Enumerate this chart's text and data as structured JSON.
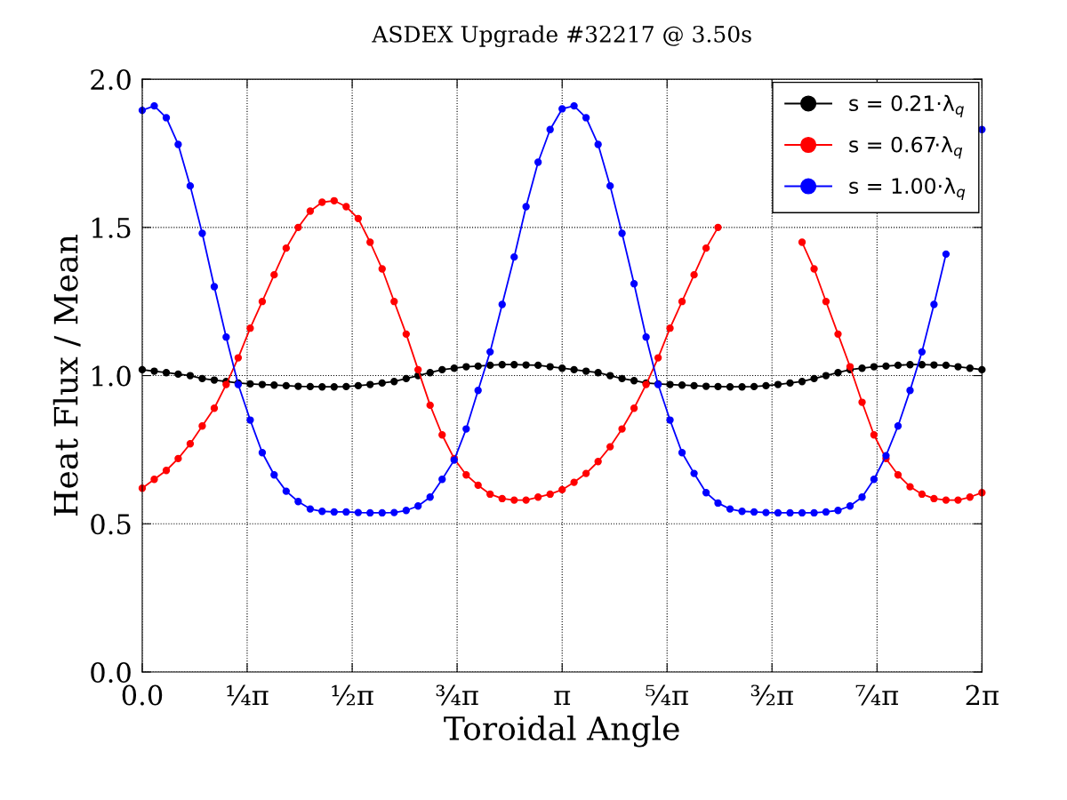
{
  "chart_data": {
    "type": "line",
    "title": "ASDEX Upgrade #32217 @ 3.50s",
    "xlabel": "Toroidal Angle",
    "ylabel": "Heat Flux / Mean",
    "x": [
      0,
      0.09,
      0.18,
      0.269,
      0.359,
      0.449,
      0.539,
      0.628,
      0.718,
      0.808,
      0.898,
      0.987,
      1.077,
      1.167,
      1.257,
      1.346,
      1.436,
      1.526,
      1.616,
      1.705,
      1.795,
      1.885,
      1.975,
      2.064,
      2.154,
      2.244,
      2.334,
      2.424,
      2.513,
      2.603,
      2.693,
      2.783,
      2.872,
      2.962,
      3.052,
      3.142,
      3.231,
      3.321,
      3.411,
      3.501,
      3.59,
      3.68,
      3.77,
      3.86,
      3.949,
      4.039,
      4.129,
      4.219,
      4.308,
      4.398,
      4.488,
      4.578,
      4.667,
      4.757,
      4.847,
      4.937,
      5.027,
      5.116,
      5.206,
      5.296,
      5.386,
      5.475,
      5.565,
      5.655,
      5.745,
      5.834,
      5.924,
      6.014,
      6.104,
      6.193,
      6.283
    ],
    "series": [
      {
        "name": "s = 0.21·λ$_{q}$",
        "color": "#000000",
        "values": [
          1.02,
          1.015,
          1.01,
          1.005,
          1.0,
          0.99,
          0.985,
          0.98,
          0.975,
          0.972,
          0.97,
          0.968,
          0.966,
          0.964,
          0.963,
          0.962,
          0.962,
          0.963,
          0.966,
          0.97,
          0.975,
          0.98,
          0.99,
          1.0,
          1.01,
          1.02,
          1.025,
          1.03,
          1.032,
          1.035,
          1.037,
          1.037,
          1.036,
          1.035,
          1.03,
          1.025,
          1.02,
          1.015,
          1.01,
          1.0,
          0.99,
          0.983,
          0.975,
          0.972,
          0.97,
          0.968,
          0.966,
          0.964,
          0.963,
          0.962,
          0.962,
          0.963,
          0.966,
          0.97,
          0.975,
          0.98,
          0.99,
          1.0,
          1.01,
          1.02,
          1.025,
          1.03,
          1.032,
          1.035,
          1.037,
          1.037,
          1.036,
          1.035,
          1.03,
          1.025,
          1.02
        ]
      },
      {
        "name": "s = 0.67·λ$_{q}$",
        "color": "#ff0000",
        "values": [
          0.62,
          0.65,
          0.68,
          0.72,
          0.77,
          0.83,
          0.89,
          0.97,
          1.06,
          1.16,
          1.25,
          1.34,
          1.43,
          1.5,
          1.555,
          1.585,
          1.59,
          1.57,
          1.53,
          1.45,
          1.36,
          1.25,
          1.14,
          1.02,
          0.9,
          0.8,
          0.72,
          0.665,
          0.63,
          0.6,
          0.585,
          0.58,
          0.58,
          0.59,
          0.6,
          0.615,
          0.64,
          0.67,
          0.71,
          0.76,
          0.82,
          0.89,
          0.97,
          1.06,
          1.16,
          1.25,
          1.34,
          1.43,
          1.5,
          null,
          null,
          null,
          null,
          null,
          null,
          1.45,
          1.36,
          1.25,
          1.14,
          1.03,
          0.91,
          0.8,
          0.72,
          0.665,
          0.625,
          0.6,
          0.585,
          0.58,
          0.58,
          0.59,
          0.605
        ]
      },
      {
        "name": "s = 1.00·λ$_{q}$",
        "color": "#0000ff",
        "values": [
          1.895,
          1.91,
          1.87,
          1.78,
          1.64,
          1.48,
          1.3,
          1.13,
          0.97,
          0.85,
          0.74,
          0.665,
          0.61,
          0.575,
          0.55,
          0.542,
          0.54,
          0.54,
          0.538,
          0.537,
          0.537,
          0.538,
          0.545,
          0.56,
          0.59,
          0.65,
          0.715,
          0.82,
          0.95,
          1.08,
          1.24,
          1.4,
          1.57,
          1.72,
          1.83,
          1.9,
          1.91,
          1.87,
          1.78,
          1.64,
          1.48,
          1.31,
          1.13,
          0.97,
          0.85,
          0.74,
          0.67,
          0.605,
          0.57,
          0.55,
          0.542,
          0.54,
          0.538,
          0.537,
          0.537,
          0.537,
          0.537,
          0.54,
          0.545,
          0.56,
          0.59,
          0.65,
          0.73,
          0.83,
          0.95,
          1.08,
          1.24,
          1.41,
          null,
          null,
          1.83
        ]
      }
    ],
    "xlim": [
      0,
      6.283
    ],
    "xticks": [
      {
        "value": 0,
        "label": "0.0"
      },
      {
        "value": 0.785,
        "label": "¼π"
      },
      {
        "value": 1.571,
        "label": "½π"
      },
      {
        "value": 2.356,
        "label": "¾π"
      },
      {
        "value": 3.142,
        "label": "π"
      },
      {
        "value": 3.927,
        "label": "⁵⁄₄π"
      },
      {
        "value": 4.712,
        "label": "³⁄₂π"
      },
      {
        "value": 5.498,
        "label": "⁷⁄₄π"
      },
      {
        "value": 6.283,
        "label": "2π"
      }
    ],
    "ylim": [
      0,
      2.0
    ],
    "yticks": [
      {
        "value": 0,
        "label": "0.0"
      },
      {
        "value": 0.5,
        "label": "0.5"
      },
      {
        "value": 1.0,
        "label": "1.0"
      },
      {
        "value": 1.5,
        "label": "1.5"
      },
      {
        "value": 2.0,
        "label": "2.0"
      }
    ],
    "grid": true,
    "legend": "top right",
    "marker": "circle",
    "line_style": "solid"
  }
}
